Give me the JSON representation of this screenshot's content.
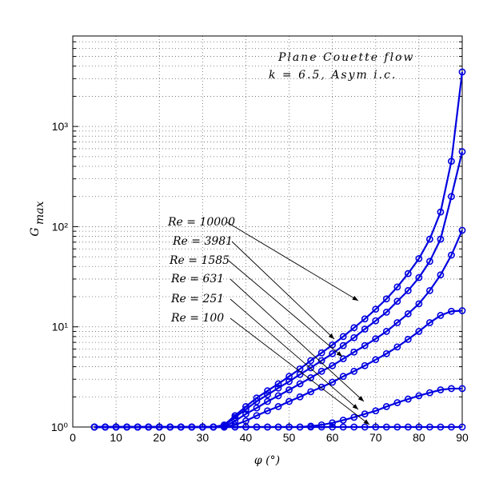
{
  "chart_data": {
    "type": "line",
    "title_lines": [
      "Plane Couette flow",
      "k = 6.5,  Asym i.c."
    ],
    "xlabel": "φ (°)",
    "ylabel": "G",
    "ylabel_sub": "max",
    "x": [
      5,
      7.5,
      10,
      12.5,
      15,
      17.5,
      20,
      22.5,
      25,
      27.5,
      30,
      32.5,
      35,
      37.5,
      40,
      42.5,
      45,
      47.5,
      50,
      52.5,
      55,
      57.5,
      60,
      62.5,
      65,
      67.5,
      70,
      72.5,
      75,
      77.5,
      80,
      82.5,
      85,
      87.5,
      90
    ],
    "xlim": [
      0,
      90
    ],
    "xticks": [
      0,
      10,
      20,
      30,
      40,
      50,
      60,
      70,
      80,
      90
    ],
    "ylim": [
      1,
      8000
    ],
    "log_y": true,
    "grid": true,
    "yticks": [
      {
        "value": 1,
        "label": "10⁰"
      },
      {
        "value": 10,
        "label": "10¹"
      },
      {
        "value": 100,
        "label": "10²"
      },
      {
        "value": 1000,
        "label": "10³"
      }
    ],
    "series": [
      {
        "name": "Re = 10000",
        "color": "#0000e0",
        "values": [
          1,
          1,
          1,
          1,
          1,
          1,
          1,
          1,
          1,
          1,
          1,
          1,
          1.05,
          1.3,
          1.6,
          1.95,
          2.3,
          2.7,
          3.2,
          3.8,
          4.6,
          5.5,
          6.6,
          8,
          9.8,
          12,
          15,
          19,
          25,
          34,
          48,
          75,
          140,
          450,
          3500
        ]
      },
      {
        "name": "Re = 3981",
        "color": "#0000e0",
        "values": [
          1,
          1,
          1,
          1,
          1,
          1,
          1,
          1,
          1,
          1,
          1,
          1,
          1.03,
          1.25,
          1.5,
          1.8,
          2.1,
          2.45,
          2.85,
          3.35,
          3.9,
          4.6,
          5.4,
          6.5,
          7.8,
          9.5,
          11.5,
          14,
          18,
          23,
          31,
          45,
          75,
          200,
          560
        ]
      },
      {
        "name": "Re = 1585",
        "color": "#0000e0",
        "values": [
          1,
          1,
          1,
          1,
          1,
          1,
          1,
          1,
          1,
          1,
          1,
          1,
          1,
          1.15,
          1.35,
          1.55,
          1.8,
          2.05,
          2.35,
          2.7,
          3.1,
          3.6,
          4.1,
          4.8,
          5.6,
          6.5,
          7.6,
          9,
          11,
          13.5,
          17,
          23,
          33,
          52,
          92
        ]
      },
      {
        "name": "Re = 631",
        "color": "#0000e0",
        "values": [
          1,
          1,
          1,
          1,
          1,
          1,
          1,
          1,
          1,
          1,
          1,
          1,
          1,
          1.05,
          1.15,
          1.3,
          1.45,
          1.6,
          1.8,
          2,
          2.25,
          2.5,
          2.8,
          3.2,
          3.6,
          4.1,
          4.7,
          5.4,
          6.3,
          7.5,
          9,
          11,
          13,
          14.3,
          14.5
        ]
      },
      {
        "name": "Re = 251",
        "color": "#0000e0",
        "values": [
          1,
          1,
          1,
          1,
          1,
          1,
          1,
          1,
          1,
          1,
          1,
          1,
          1,
          1,
          1,
          1,
          1,
          1,
          1,
          1,
          1.02,
          1.05,
          1.1,
          1.17,
          1.25,
          1.35,
          1.45,
          1.6,
          1.75,
          1.9,
          2.05,
          2.2,
          2.35,
          2.42,
          2.42
        ]
      },
      {
        "name": "Re = 100",
        "color": "#0000e0",
        "values": [
          1,
          1,
          1,
          1,
          1,
          1,
          1,
          1,
          1,
          1,
          1,
          1,
          1,
          1,
          1,
          1,
          1,
          1,
          1,
          1,
          1,
          1,
          1,
          1,
          1,
          1,
          1,
          1,
          1,
          1,
          1,
          1,
          1,
          1,
          1
        ]
      }
    ]
  }
}
